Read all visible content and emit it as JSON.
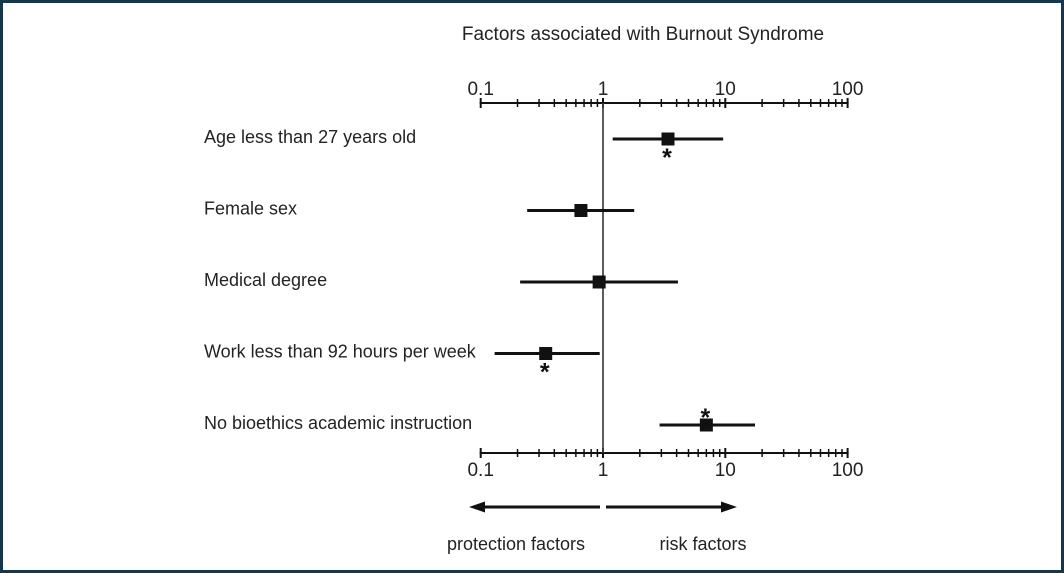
{
  "figure": {
    "border_color": "#17374d",
    "background_color": "#ffffff",
    "ink_color": "#111111",
    "text_color": "#232323"
  },
  "chart_data": {
    "type": "scatter",
    "variant": "forest-plot",
    "title": "Factors associated with Burnout Syndrome",
    "x_scale": "log",
    "x_range": [
      0.1,
      100
    ],
    "x_major_ticks": [
      0.1,
      1,
      10,
      100
    ],
    "x_tick_labels": [
      "0.1",
      "1",
      "10",
      "100"
    ],
    "x_minor_ticks": [
      0.2,
      0.3,
      0.4,
      0.5,
      0.6,
      0.7,
      0.8,
      0.9,
      2,
      3,
      4,
      5,
      6,
      7,
      8,
      9,
      20,
      30,
      40,
      50,
      60,
      70,
      80,
      90
    ],
    "reference_value": 1,
    "axes": {
      "top": true,
      "bottom": true,
      "grid": false
    },
    "significance_marker": "*",
    "rows": [
      {
        "label": "Age less than 27 years old",
        "odds_ratio": 3.4,
        "ci_low": 1.2,
        "ci_high": 9.6,
        "significant": true,
        "asterisk": "below"
      },
      {
        "label": "Female sex",
        "odds_ratio": 0.66,
        "ci_low": 0.24,
        "ci_high": 1.8,
        "significant": false,
        "asterisk": null
      },
      {
        "label": "Medical degree",
        "odds_ratio": 0.93,
        "ci_low": 0.21,
        "ci_high": 4.1,
        "significant": false,
        "asterisk": null
      },
      {
        "label": "Work less than 92 hours per week",
        "odds_ratio": 0.34,
        "ci_low": 0.13,
        "ci_high": 0.94,
        "significant": true,
        "asterisk": "below"
      },
      {
        "label": "No bioethics academic instruction",
        "odds_ratio": 7.0,
        "ci_low": 2.9,
        "ci_high": 17.5,
        "significant": true,
        "asterisk": "above"
      }
    ],
    "direction_labels": {
      "protection": "protection factors",
      "risk": "risk factors"
    }
  }
}
